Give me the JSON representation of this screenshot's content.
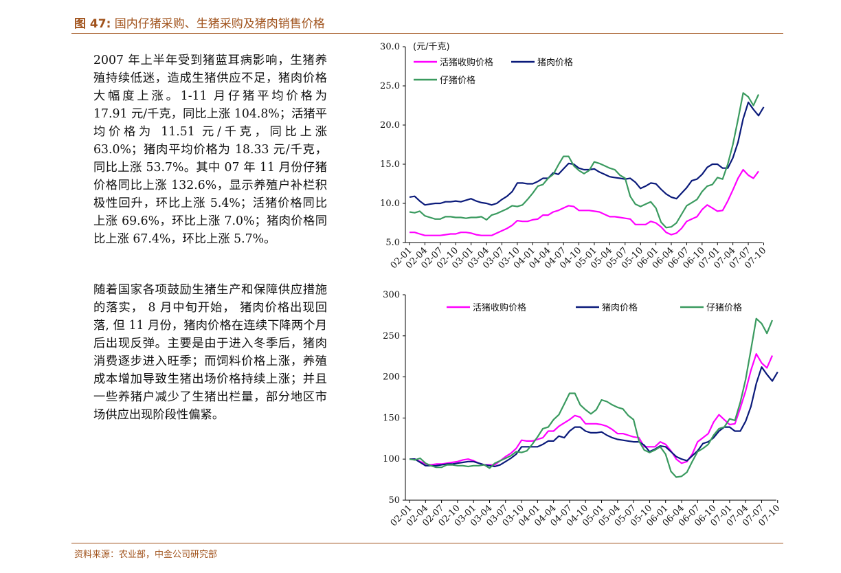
{
  "figure_title": {
    "label": "图 47:",
    "text": "国内仔猪采购、生猪采购及猪肉销售价格"
  },
  "paragraphs": [
    "2007 年上半年受到猪蓝耳病影响，生猪养殖持续低迷，造成生猪供应不足，猪肉价格大幅度上涨。1-11 月仔猪平均价格为 17.91 元/千克，同比上涨 104.8%；活猪平均价格为 11.51 元/千克，同比上涨 63.0%；猪肉平均价格为 18.33 元/千克，同比上涨 53.7%。其中 07 年 11 月份仔猪价格同比上涨 132.6%，显示养殖户补栏积极性回升，环比上涨 5.4%；活猪价格同比上涨 69.6%，环比上涨 7.0%；猪肉价格同比上涨 67.4%，环比上涨 5.7%。",
    "随着国家各项鼓励生猪生产和保障供应措施的落实， 8 月中旬开始， 猪肉价格出现回落, 但 11 月份，猪肉价格在连续下降两个月后出现反弹。主要是由于进入冬季后，猪肉消费逐步进入旺季；而饲料价格上涨，养殖成本增加导致生猪出场价格持续上涨；并且一些养猪户减少了生猪出栏量，部分地区市场供应出现阶段性偏紧。"
  ],
  "source": "资料来源：农业部，中金公司研究部",
  "chart_data": [
    {
      "type": "line",
      "unit_label": "(元/千克)",
      "ylim": [
        5,
        30
      ],
      "yticks": [
        "5.0",
        "10.0",
        "15.0",
        "20.0",
        "25.0",
        "30.0"
      ],
      "x_tick_labels": [
        "02-01",
        "02-04",
        "02-07",
        "02-10",
        "03-01",
        "03-04",
        "03-07",
        "03-10",
        "04-01",
        "04-04",
        "04-07",
        "04-10",
        "05-01",
        "05-04",
        "05-07",
        "05-10",
        "06-01",
        "06-04",
        "06-07",
        "06-10",
        "07-01",
        "07-04",
        "07-07",
        "07-10"
      ],
      "legend_position": "top-left",
      "series": [
        {
          "name": "活猪收购价格",
          "color": "#ff00ff",
          "values": [
            6.3,
            6.3,
            6.1,
            5.9,
            5.9,
            5.9,
            5.9,
            6.0,
            6.1,
            6.1,
            6.3,
            6.3,
            6.2,
            6.0,
            5.9,
            5.9,
            5.9,
            6.2,
            6.5,
            6.8,
            7.2,
            7.8,
            7.7,
            7.7,
            7.9,
            8.0,
            8.5,
            8.5,
            8.9,
            9.1,
            9.4,
            9.7,
            9.6,
            9.1,
            9.1,
            9.1,
            9.0,
            8.9,
            8.6,
            8.3,
            8.3,
            8.2,
            8.1,
            8.0,
            7.3,
            7.3,
            7.3,
            7.7,
            7.5,
            7.0,
            6.3,
            6.0,
            6.2,
            6.8,
            7.7,
            8.0,
            8.3,
            9.2,
            9.8,
            9.4,
            9.0,
            9.1,
            10.3,
            11.7,
            13.2,
            14.3,
            13.6,
            13.2,
            14.1
          ]
        },
        {
          "name": "猪肉价格",
          "color": "#0a1a7a",
          "values": [
            10.8,
            10.9,
            10.3,
            9.8,
            9.9,
            10.0,
            10.0,
            10.2,
            10.2,
            10.3,
            10.2,
            10.4,
            10.6,
            10.3,
            10.1,
            10.0,
            9.8,
            10.0,
            10.5,
            10.9,
            11.5,
            12.6,
            12.6,
            12.5,
            12.5,
            12.8,
            13.2,
            13.2,
            13.9,
            13.7,
            14.4,
            15.1,
            15.0,
            14.5,
            14.3,
            14.3,
            14.4,
            14.0,
            13.7,
            13.4,
            13.3,
            13.2,
            13.1,
            13.2,
            12.7,
            11.9,
            12.2,
            12.6,
            12.5,
            11.8,
            11.2,
            10.8,
            10.6,
            11.3,
            12.0,
            12.9,
            13.1,
            13.7,
            14.6,
            15.0,
            15.0,
            14.5,
            14.5,
            15.8,
            17.8,
            20.8,
            22.9,
            22.0,
            21.2,
            22.3
          ]
        },
        {
          "name": "仔猪价格",
          "color": "#3a9a5f",
          "values": [
            8.9,
            8.8,
            9.0,
            8.4,
            8.2,
            8.0,
            8.0,
            8.3,
            8.3,
            8.2,
            8.2,
            8.1,
            8.2,
            8.2,
            8.3,
            7.9,
            8.5,
            8.7,
            9.0,
            9.3,
            9.7,
            9.6,
            9.8,
            10.5,
            11.3,
            12.2,
            12.4,
            13.2,
            13.7,
            14.9,
            16.0,
            16.0,
            14.8,
            14.2,
            13.8,
            14.2,
            15.3,
            15.1,
            14.8,
            14.5,
            14.3,
            13.6,
            13.2,
            10.9,
            9.9,
            9.6,
            9.9,
            10.2,
            9.4,
            7.6,
            6.9,
            7.0,
            7.5,
            8.6,
            9.7,
            10.1,
            10.5,
            11.5,
            12.2,
            12.4,
            13.3,
            13.1,
            15.0,
            17.5,
            20.7,
            24.1,
            23.6,
            22.5,
            23.9
          ]
        }
      ]
    },
    {
      "type": "line",
      "ylim": [
        50,
        300
      ],
      "yticks": [
        "50",
        "100",
        "150",
        "200",
        "250",
        "300"
      ],
      "x_tick_labels": [
        "02-01",
        "02-04",
        "02-07",
        "02-10",
        "03-01",
        "03-04",
        "03-07",
        "03-10",
        "04-01",
        "04-04",
        "04-07",
        "04-10",
        "05-01",
        "05-04",
        "05-07",
        "05-10",
        "06-01",
        "06-04",
        "06-07",
        "06-10",
        "07-01",
        "07-04",
        "07-07",
        "07-10"
      ],
      "legend_position": "top",
      "series": [
        {
          "name": "活猪收购价格",
          "color": "#ff00ff",
          "values": [
            100,
            100,
            97,
            94,
            93,
            94,
            94,
            95,
            96,
            97,
            99,
            100,
            98,
            95,
            93,
            93,
            93,
            98,
            103,
            107,
            113,
            123,
            122,
            122,
            124,
            126,
            134,
            134,
            140,
            144,
            148,
            153,
            151,
            143,
            143,
            143,
            142,
            140,
            136,
            131,
            131,
            129,
            127,
            126,
            115,
            115,
            115,
            121,
            118,
            110,
            100,
            95,
            97,
            106,
            121,
            126,
            131,
            145,
            154,
            148,
            142,
            143,
            162,
            183,
            208,
            228,
            217,
            211,
            226
          ]
        },
        {
          "name": "猪肉价格",
          "color": "#0a1a7a",
          "values": [
            100,
            100,
            96,
            92,
            92,
            92,
            93,
            94,
            94,
            95,
            96,
            97,
            97,
            95,
            93,
            92,
            91,
            93,
            97,
            101,
            106,
            115,
            115,
            115,
            115,
            118,
            122,
            122,
            128,
            126,
            134,
            139,
            139,
            134,
            132,
            132,
            133,
            129,
            126,
            124,
            123,
            122,
            121,
            121,
            117,
            109,
            112,
            116,
            115,
            109,
            103,
            100,
            98,
            104,
            110,
            119,
            121,
            126,
            134,
            139,
            139,
            134,
            134,
            146,
            164,
            192,
            212,
            203,
            195,
            206
          ]
        },
        {
          "name": "仔猪价格",
          "color": "#3a9a5f",
          "values": [
            100,
            99,
            101,
            95,
            92,
            90,
            90,
            93,
            93,
            92,
            92,
            91,
            92,
            92,
            93,
            89,
            95,
            98,
            101,
            104,
            109,
            108,
            110,
            118,
            127,
            137,
            139,
            148,
            154,
            167,
            180,
            180,
            166,
            160,
            155,
            160,
            172,
            170,
            166,
            163,
            161,
            153,
            148,
            122,
            111,
            108,
            111,
            115,
            106,
            85,
            78,
            79,
            84,
            97,
            109,
            113,
            118,
            129,
            137,
            139,
            149,
            147,
            169,
            197,
            233,
            271,
            265,
            253,
            269
          ]
        }
      ]
    }
  ]
}
